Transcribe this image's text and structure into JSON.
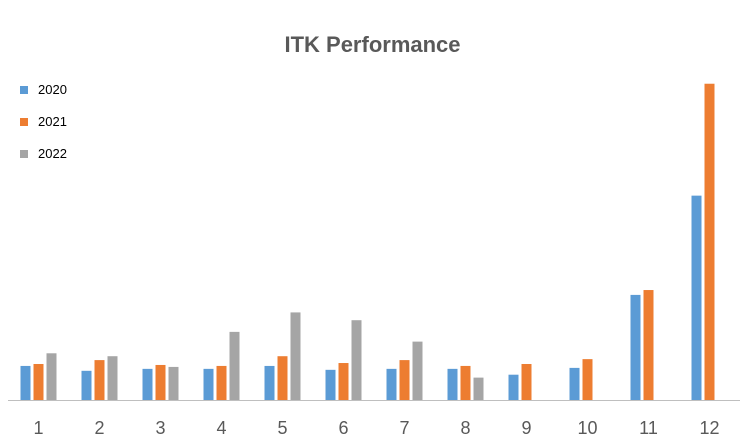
{
  "chart_data": {
    "type": "bar",
    "title": "ITK Performance",
    "xlabel": "",
    "ylabel": "",
    "categories": [
      "1",
      "2",
      "3",
      "4",
      "5",
      "6",
      "7",
      "8",
      "9",
      "10",
      "11",
      "12"
    ],
    "series": [
      {
        "name": "2020",
        "color": "#5B9BD5",
        "values": [
          3.5,
          3.0,
          3.2,
          3.2,
          3.5,
          3.1,
          3.2,
          3.2,
          2.6,
          3.3,
          10.8,
          21.0
        ]
      },
      {
        "name": "2021",
        "color": "#ED7D31",
        "values": [
          3.7,
          4.1,
          3.6,
          3.5,
          4.5,
          3.8,
          4.1,
          3.5,
          3.7,
          4.2,
          11.3,
          32.5
        ]
      },
      {
        "name": "2022",
        "color": "#A5A5A5",
        "values": [
          4.8,
          4.5,
          3.4,
          7.0,
          9.0,
          8.2,
          6.0,
          2.3,
          null,
          null,
          null,
          null
        ]
      }
    ],
    "ylim": [
      0,
      33.5
    ],
    "grid": false,
    "legend_position": "top-left"
  }
}
